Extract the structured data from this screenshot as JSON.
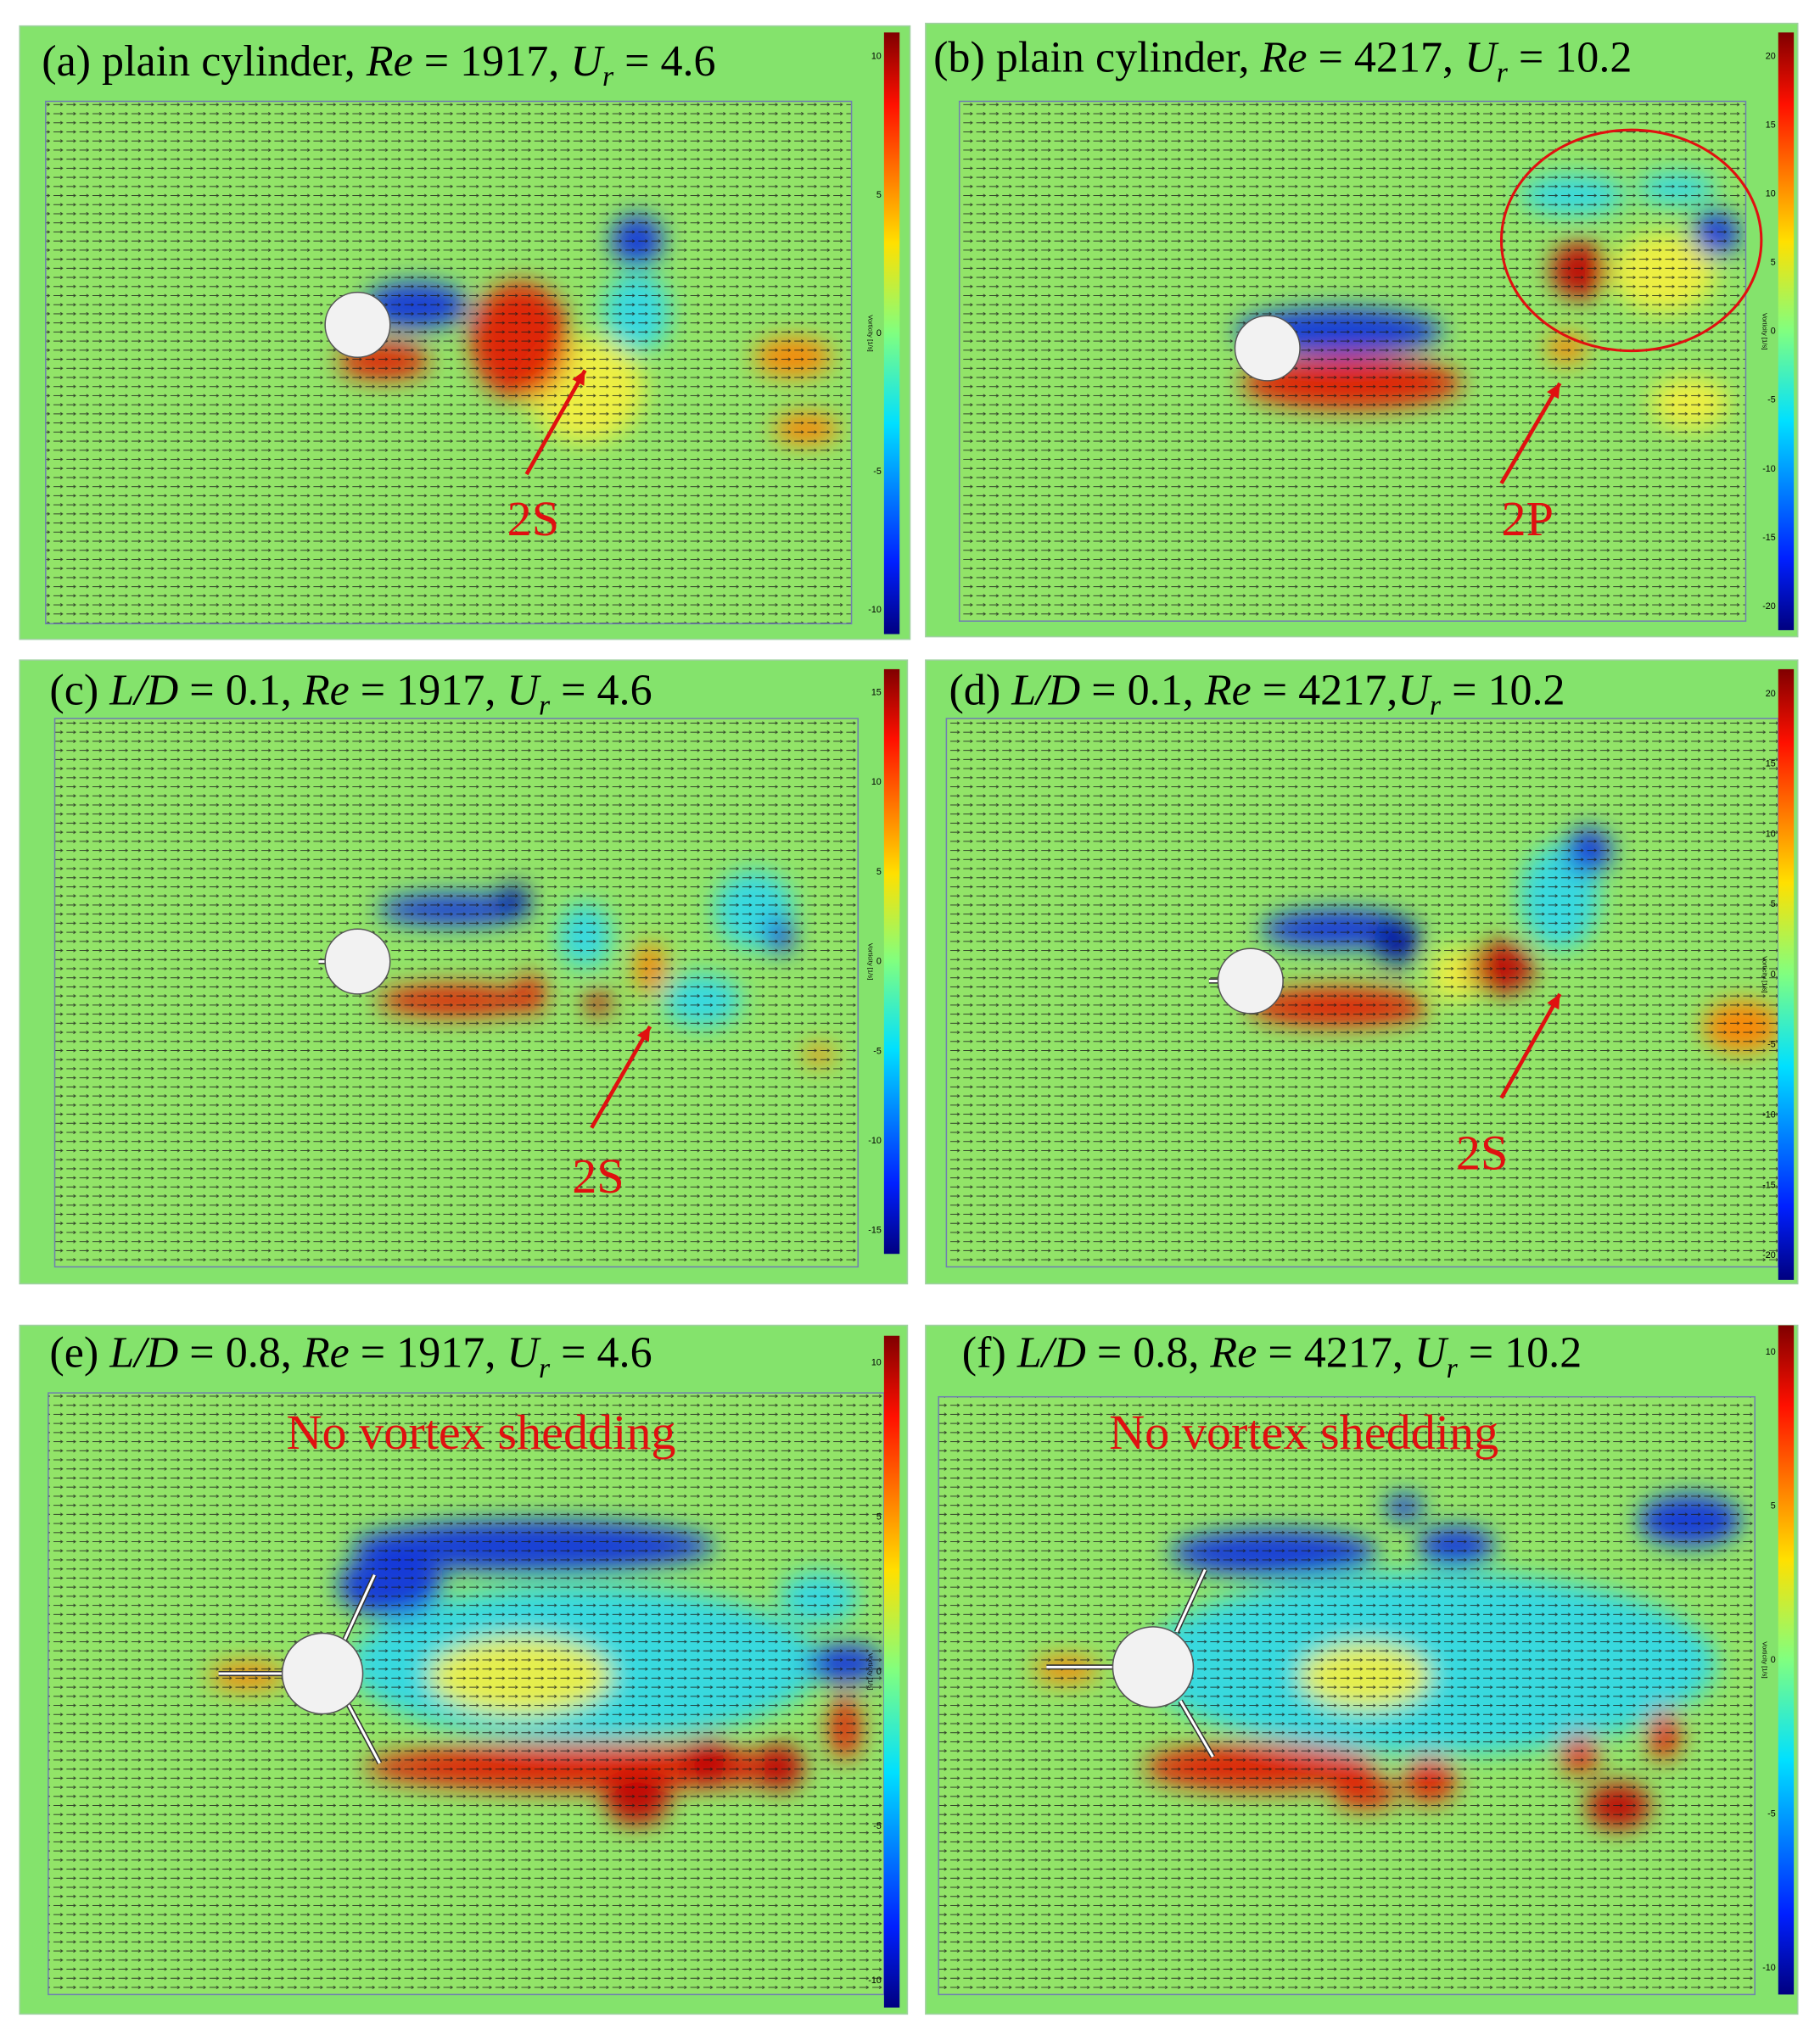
{
  "panels": [
    {
      "title": [
        {
          "text": "(a) plain cylinder, "
        },
        {
          "text": "Re",
          "italic": true
        },
        {
          "text": " = 1917, "
        },
        {
          "text": "U",
          "italic": true
        },
        {
          "text": "r",
          "italic": true,
          "sub": true
        },
        {
          "text": " = 4.6"
        }
      ],
      "annotations": [
        {
          "text": "2S"
        }
      ],
      "colorbar": {
        "label": "Vorticity [1/s]",
        "ticks": [
          10,
          5,
          0,
          -5,
          -10
        ]
      }
    },
    {
      "title": [
        {
          "text": "(b) plain cylinder, "
        },
        {
          "text": "Re",
          "italic": true
        },
        {
          "text": " = 4217, "
        },
        {
          "text": "U",
          "italic": true
        },
        {
          "text": "r",
          "italic": true,
          "sub": true
        },
        {
          "text": " = 10.2"
        }
      ],
      "annotations": [
        {
          "text": "2P"
        }
      ],
      "colorbar": {
        "label": "Vorticity [1/s]",
        "ticks": [
          20,
          15,
          10,
          5,
          0,
          -5,
          -10,
          -15,
          -20
        ]
      }
    },
    {
      "title": [
        {
          "text": "(c) "
        },
        {
          "text": "L/D",
          "italic": true
        },
        {
          "text": " = 0.1, "
        },
        {
          "text": "Re",
          "italic": true
        },
        {
          "text": " = 1917, "
        },
        {
          "text": "U",
          "italic": true
        },
        {
          "text": "r",
          "italic": true,
          "sub": true
        },
        {
          "text": " = 4.6"
        }
      ],
      "annotations": [
        {
          "text": "2S"
        }
      ],
      "colorbar": {
        "label": "Vorticity [1/s]",
        "ticks": [
          15,
          10,
          5,
          0,
          -5,
          -10,
          -15
        ]
      }
    },
    {
      "title": [
        {
          "text": "(d) "
        },
        {
          "text": "L/D",
          "italic": true
        },
        {
          "text": " = 0.1, "
        },
        {
          "text": "Re",
          "italic": true
        },
        {
          "text": " = 4217,"
        },
        {
          "text": "U",
          "italic": true
        },
        {
          "text": "r",
          "italic": true,
          "sub": true
        },
        {
          "text": " = 10.2"
        }
      ],
      "annotations": [
        {
          "text": "2S"
        }
      ],
      "colorbar": {
        "label": "Vorticity [1/s]",
        "ticks": [
          20,
          15,
          10,
          5,
          0,
          -5,
          -10,
          -15,
          -20
        ]
      }
    },
    {
      "title": [
        {
          "text": "(e) "
        },
        {
          "text": "L/D",
          "italic": true
        },
        {
          "text": " = 0.8, "
        },
        {
          "text": "Re",
          "italic": true
        },
        {
          "text": " = 1917, "
        },
        {
          "text": "U",
          "italic": true
        },
        {
          "text": "r",
          "italic": true,
          "sub": true
        },
        {
          "text": " = 4.6"
        }
      ],
      "annotations": [
        {
          "text": "No vortex shedding"
        }
      ],
      "colorbar": {
        "label": "Vorticity [1/s]",
        "ticks": [
          10,
          5,
          0,
          -5,
          -10
        ]
      }
    },
    {
      "title": [
        {
          "text": "(f) "
        },
        {
          "text": "L/D",
          "italic": true
        },
        {
          "text": " = 0.8, "
        },
        {
          "text": "Re",
          "italic": true
        },
        {
          "text": " = 4217, "
        },
        {
          "text": "U",
          "italic": true
        },
        {
          "text": "r",
          "italic": true,
          "sub": true
        },
        {
          "text": " = 10.2"
        }
      ],
      "annotations": [
        {
          "text": "No vortex shedding"
        }
      ],
      "colorbar": {
        "label": "Vorticity [1/s]",
        "ticks": [
          10,
          5,
          0,
          -5,
          -10
        ]
      }
    }
  ]
}
